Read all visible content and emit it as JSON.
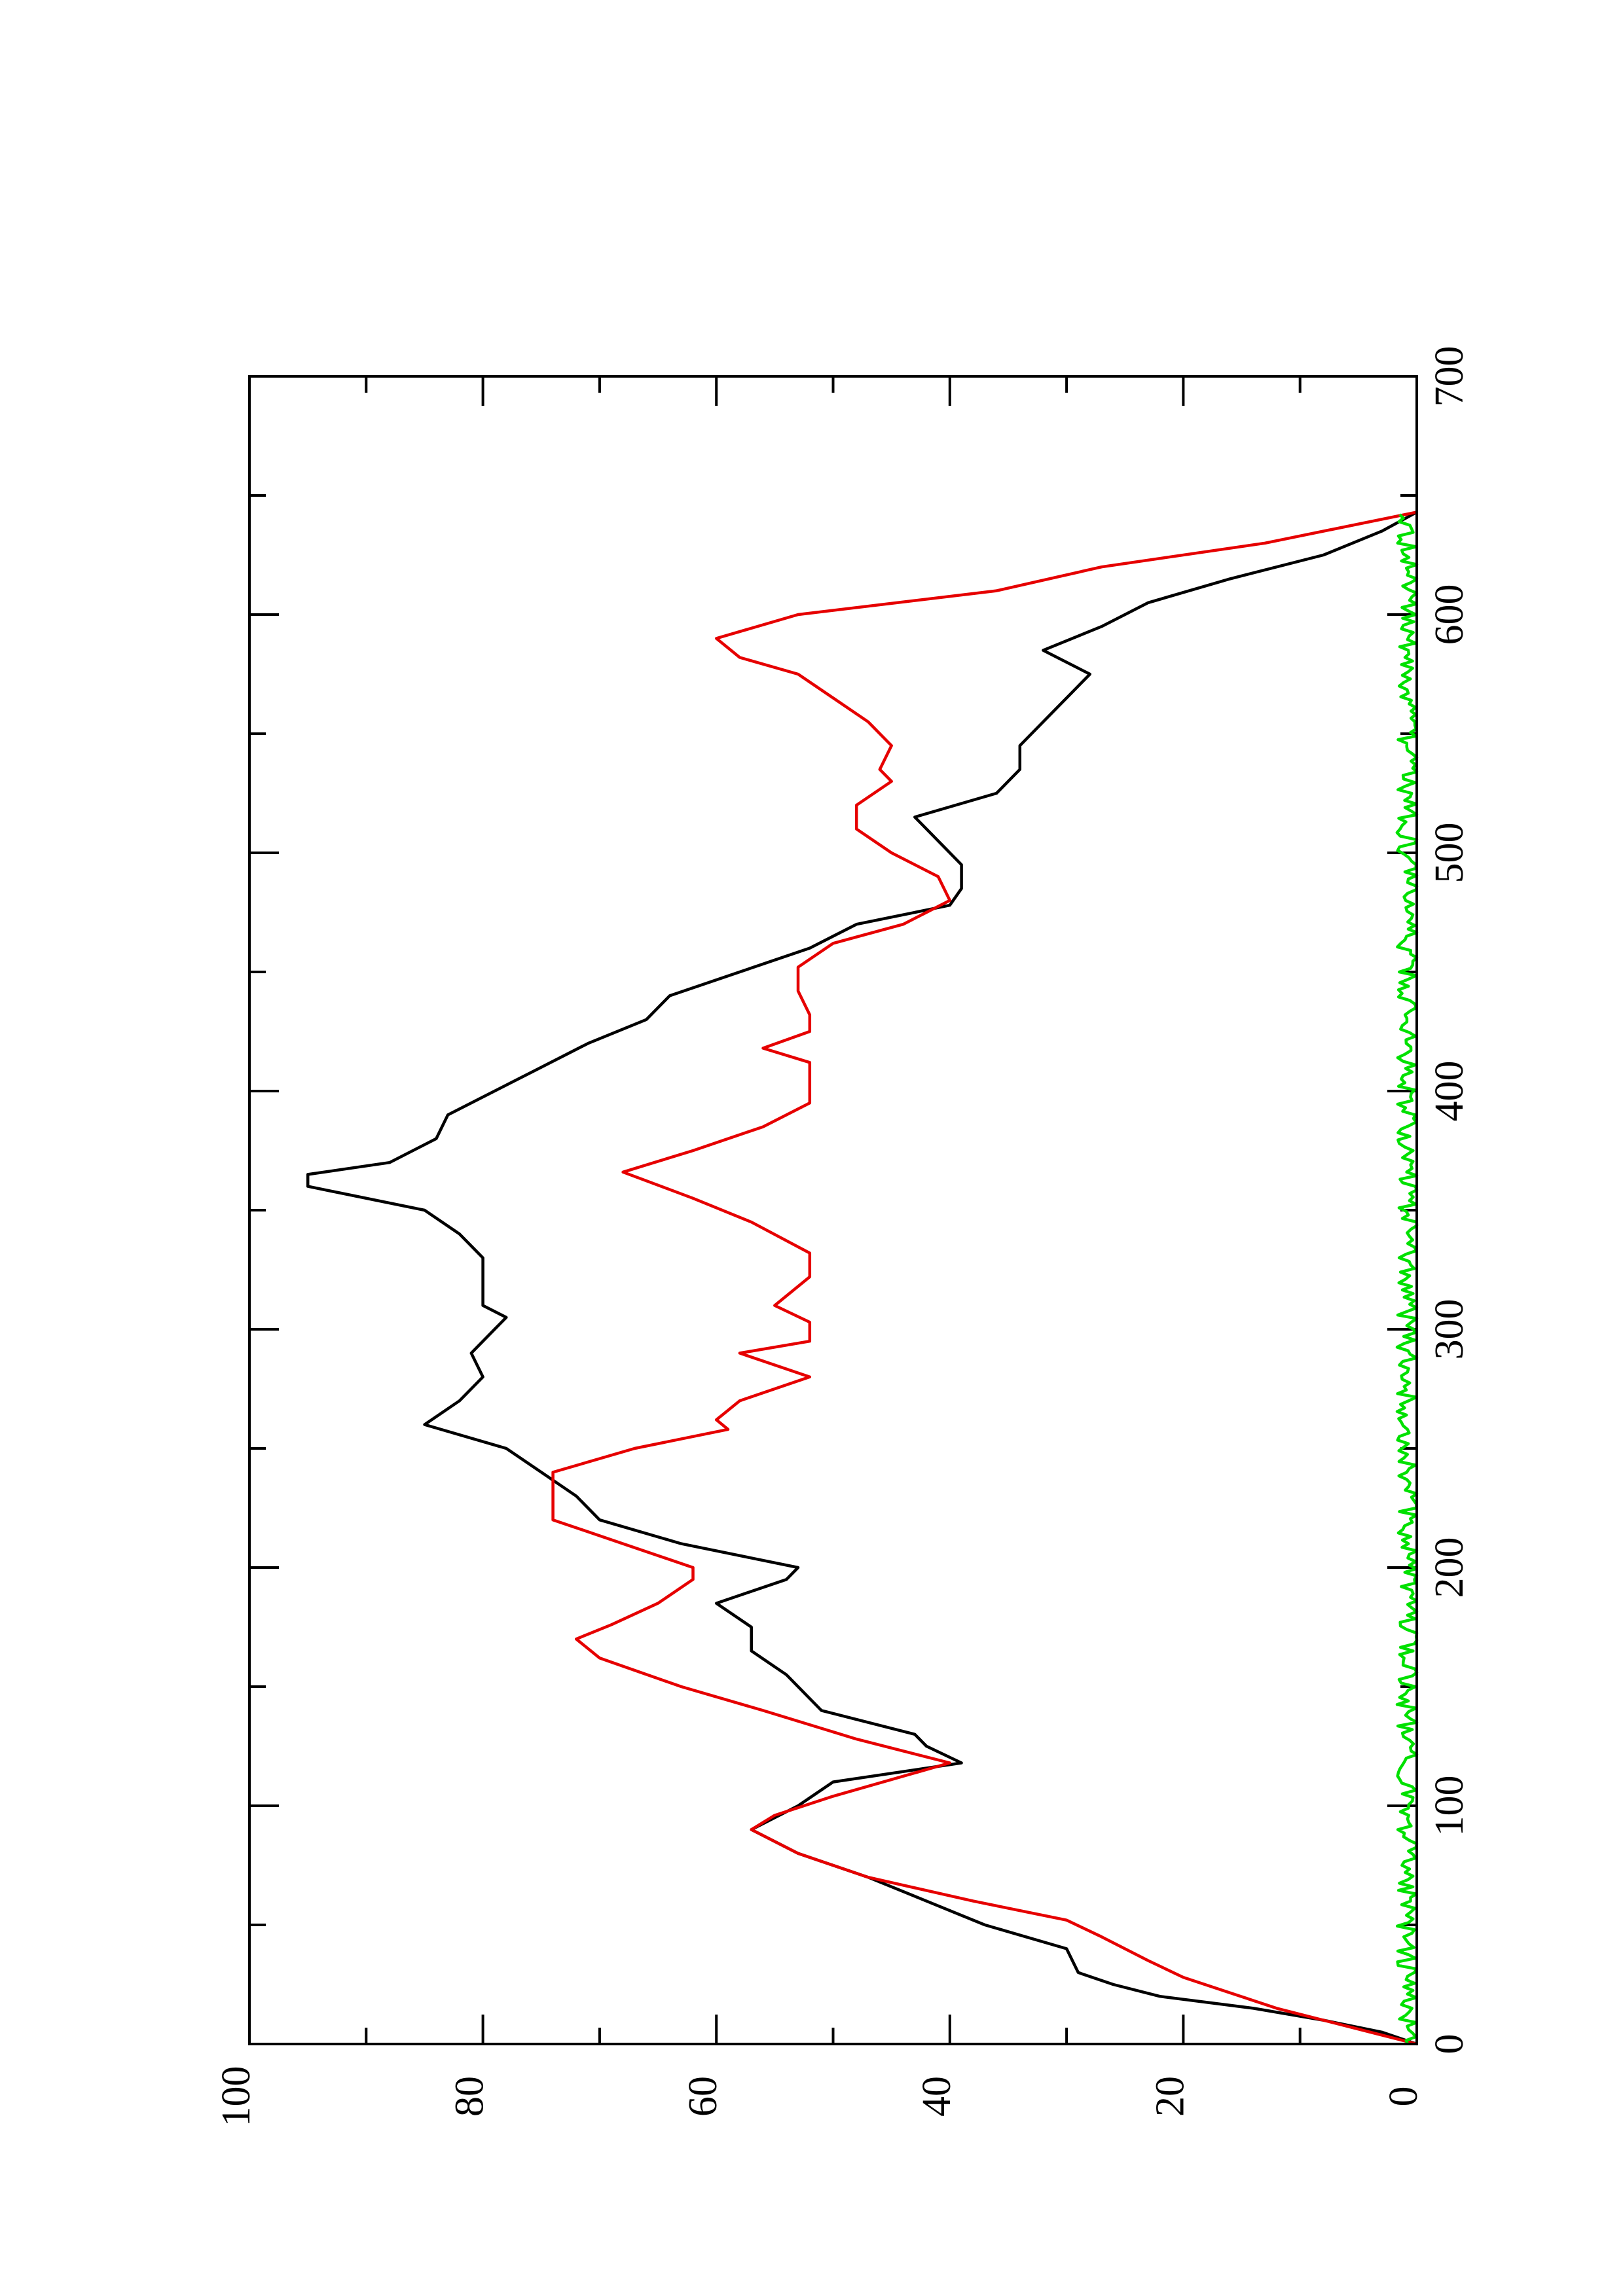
{
  "chart_data": {
    "type": "line",
    "title": "",
    "xlabel": "",
    "ylabel": "",
    "xlim": [
      0,
      700
    ],
    "ylim": [
      0,
      100
    ],
    "grid": false,
    "legend": "none",
    "orientation": "rotated 90 degrees counter-clockwise",
    "x_ticks": [
      "0",
      "100",
      "200",
      "300",
      "400",
      "500",
      "600",
      "700"
    ],
    "y_ticks": [
      "0",
      "20",
      "40",
      "60",
      "80",
      "100"
    ],
    "series": [
      {
        "color": "#000000",
        "x": [
          0,
          5,
          10,
          15,
          20,
          25,
          30,
          40,
          50,
          60,
          70,
          80,
          90,
          100,
          110,
          118,
          125,
          130,
          140,
          155,
          165,
          175,
          185,
          195,
          200,
          210,
          220,
          230,
          240,
          250,
          260,
          270,
          280,
          290,
          300,
          305,
          310,
          320,
          330,
          340,
          350,
          360,
          365,
          370,
          380,
          390,
          400,
          410,
          420,
          430,
          440,
          450,
          460,
          470,
          478,
          485,
          495,
          505,
          515,
          525,
          535,
          545,
          555,
          565,
          575,
          585,
          595,
          605,
          615,
          625,
          635,
          643
        ],
        "y": [
          0,
          3,
          8,
          14,
          22,
          26,
          29,
          30,
          37,
          42,
          47,
          53,
          57,
          53,
          50,
          39,
          42,
          43,
          51,
          54,
          57,
          57,
          60,
          54,
          53,
          63,
          70,
          72,
          75,
          78,
          85,
          82,
          80,
          81,
          79,
          78,
          80,
          80,
          80,
          82,
          85,
          95,
          95,
          88,
          84,
          83,
          79,
          75,
          71,
          66,
          64,
          58,
          52,
          48,
          40,
          39,
          39,
          41,
          43,
          36,
          34,
          34,
          32,
          30,
          28,
          32,
          27,
          23,
          16,
          8,
          3,
          0
        ]
      },
      {
        "color": "#e60000",
        "x": [
          0,
          5,
          15,
          28,
          35,
          45,
          52,
          60,
          70,
          80,
          90,
          96,
          104,
          118,
          128,
          140,
          150,
          162,
          170,
          176,
          185,
          195,
          200,
          210,
          220,
          240,
          250,
          258,
          262,
          270,
          280,
          290,
          295,
          303,
          310,
          322,
          332,
          345,
          355,
          366,
          375,
          385,
          395,
          403,
          412,
          418,
          425,
          432,
          442,
          452,
          462,
          470,
          480,
          490,
          500,
          510,
          520,
          530,
          535,
          545,
          555,
          565,
          575,
          582,
          590,
          600,
          610,
          620,
          630,
          643
        ],
        "y": [
          0,
          4,
          12,
          20,
          23,
          27,
          30,
          38,
          47,
          53,
          57,
          55,
          50,
          40,
          48,
          56,
          63,
          70,
          72,
          69,
          65,
          62,
          62,
          68,
          74,
          74,
          67,
          59,
          60,
          58,
          52,
          58,
          52,
          52,
          55,
          52,
          52,
          57,
          62,
          68,
          62,
          56,
          52,
          52,
          52,
          56,
          52,
          52,
          53,
          53,
          50,
          44,
          40,
          41,
          45,
          48,
          48,
          45,
          46,
          45,
          47,
          50,
          53,
          58,
          60,
          53,
          36,
          27,
          13,
          0
        ]
      },
      {
        "color": "#00e000",
        "noise": true,
        "x_range": [
          0,
          643
        ],
        "mean": 0.8,
        "amplitude": 0.9
      }
    ]
  }
}
